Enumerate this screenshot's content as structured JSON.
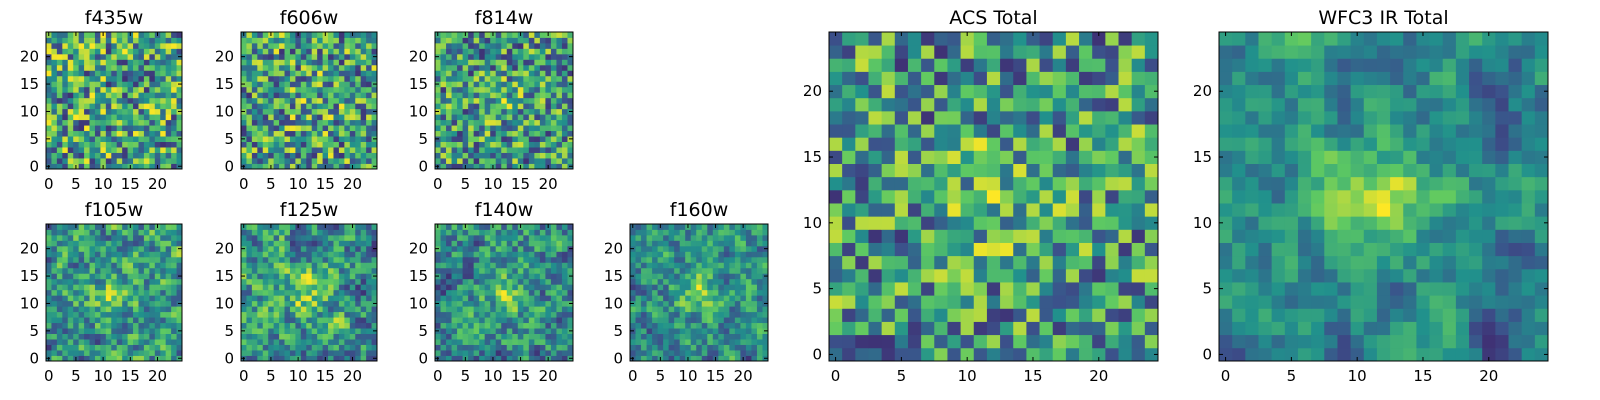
{
  "figure": {
    "description_free": true,
    "colormap": "viridis",
    "colors": {
      "viridis_stops": [
        "#440154",
        "#3b528b",
        "#21918c",
        "#5ec962",
        "#fde725"
      ],
      "frame": "#000000",
      "background": "#ffffff"
    }
  },
  "chart_data": [
    {
      "type": "heatmap",
      "title": "f435w",
      "grid_size": 25,
      "seed": 11,
      "smooth": 0,
      "peak": 0.0,
      "x_ticks": [
        "0",
        "5",
        "10",
        "15",
        "20"
      ],
      "y_ticks": [
        "0",
        "5",
        "10",
        "15",
        "20"
      ],
      "xlim": [
        -0.5,
        24.5
      ],
      "ylim": [
        -0.5,
        24.5
      ]
    },
    {
      "type": "heatmap",
      "title": "f606w",
      "grid_size": 25,
      "seed": 23,
      "smooth": 0,
      "peak": 0.1,
      "x_ticks": [
        "0",
        "5",
        "10",
        "15",
        "20"
      ],
      "y_ticks": [
        "0",
        "5",
        "10",
        "15",
        "20"
      ],
      "xlim": [
        -0.5,
        24.5
      ],
      "ylim": [
        -0.5,
        24.5
      ]
    },
    {
      "type": "heatmap",
      "title": "f814w",
      "grid_size": 25,
      "seed": 37,
      "smooth": 0,
      "peak": 0.15,
      "x_ticks": [
        "0",
        "5",
        "10",
        "15",
        "20"
      ],
      "y_ticks": [
        "0",
        "5",
        "10",
        "15",
        "20"
      ],
      "xlim": [
        -0.5,
        24.5
      ],
      "ylim": [
        -0.5,
        24.5
      ]
    },
    {
      "type": "heatmap",
      "title": "f105w",
      "grid_size": 25,
      "seed": 41,
      "smooth": 1,
      "peak": 0.25,
      "x_ticks": [
        "0",
        "5",
        "10",
        "15",
        "20"
      ],
      "y_ticks": [
        "0",
        "5",
        "10",
        "15",
        "20"
      ],
      "xlim": [
        -0.5,
        24.5
      ],
      "ylim": [
        -0.5,
        24.5
      ]
    },
    {
      "type": "heatmap",
      "title": "f125w",
      "grid_size": 25,
      "seed": 53,
      "smooth": 1,
      "peak": 0.25,
      "x_ticks": [
        "0",
        "5",
        "10",
        "15",
        "20"
      ],
      "y_ticks": [
        "0",
        "5",
        "10",
        "15",
        "20"
      ],
      "xlim": [
        -0.5,
        24.5
      ],
      "ylim": [
        -0.5,
        24.5
      ]
    },
    {
      "type": "heatmap",
      "title": "f140w",
      "grid_size": 25,
      "seed": 67,
      "smooth": 1,
      "peak": 0.25,
      "x_ticks": [
        "0",
        "5",
        "10",
        "15",
        "20"
      ],
      "y_ticks": [
        "0",
        "5",
        "10",
        "15",
        "20"
      ],
      "xlim": [
        -0.5,
        24.5
      ],
      "ylim": [
        -0.5,
        24.5
      ]
    },
    {
      "type": "heatmap",
      "title": "f160w",
      "grid_size": 25,
      "seed": 79,
      "smooth": 1,
      "peak": 0.35,
      "x_ticks": [
        "0",
        "5",
        "10",
        "15",
        "20"
      ],
      "y_ticks": [
        "0",
        "5",
        "10",
        "15",
        "20"
      ],
      "xlim": [
        -0.5,
        24.5
      ],
      "ylim": [
        -0.5,
        24.5
      ]
    },
    {
      "type": "heatmap",
      "title": "ACS Total",
      "grid_size": 25,
      "seed": 97,
      "smooth": 0,
      "peak": 0.2,
      "x_ticks": [
        "0",
        "5",
        "10",
        "15",
        "20"
      ],
      "y_ticks": [
        "0",
        "5",
        "10",
        "15",
        "20"
      ],
      "xlim": [
        -0.5,
        24.5
      ],
      "ylim": [
        -0.5,
        24.5
      ]
    },
    {
      "type": "heatmap",
      "title": "WFC3 IR Total",
      "grid_size": 25,
      "seed": 131,
      "smooth": 2,
      "peak": 0.45,
      "x_ticks": [
        "0",
        "5",
        "10",
        "15",
        "20"
      ],
      "y_ticks": [
        "0",
        "5",
        "10",
        "15",
        "20"
      ],
      "xlim": [
        -0.5,
        24.5
      ],
      "ylim": [
        -0.5,
        24.5
      ]
    }
  ]
}
